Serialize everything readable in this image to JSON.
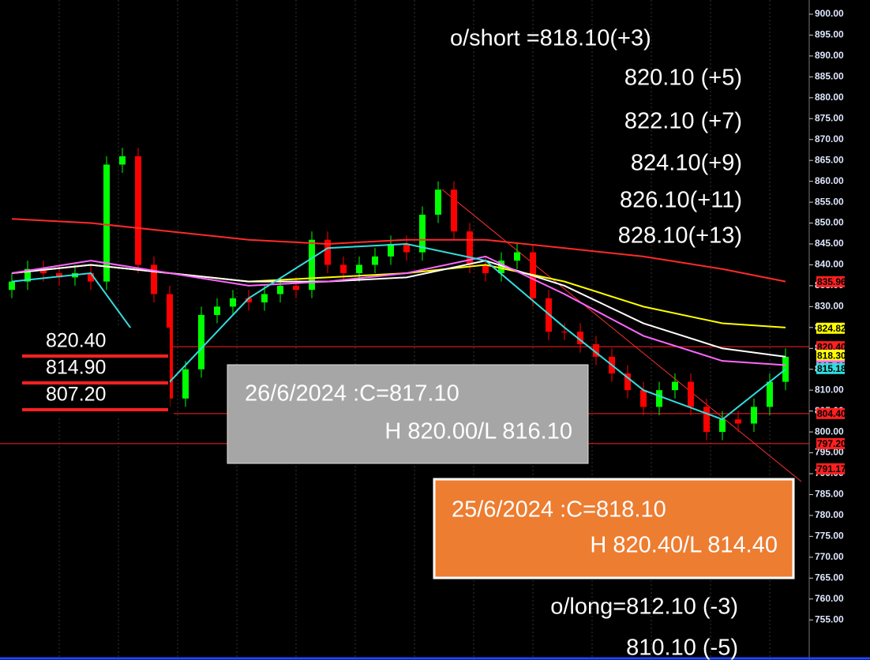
{
  "chart_data": {
    "type": "candlestick",
    "ylim": [
      745.4,
      903.4
    ],
    "yticks": [
      {
        "value": 900,
        "label": "900.00"
      },
      {
        "value": 895,
        "label": "895.00"
      },
      {
        "value": 890,
        "label": "890.00"
      },
      {
        "value": 885,
        "label": "885.00"
      },
      {
        "value": 880,
        "label": "880.00"
      },
      {
        "value": 875,
        "label": "875.00"
      },
      {
        "value": 870,
        "label": "870.00"
      },
      {
        "value": 865,
        "label": "865.00"
      },
      {
        "value": 860,
        "label": "860.00"
      },
      {
        "value": 855,
        "label": "855.00"
      },
      {
        "value": 850,
        "label": "850.00"
      },
      {
        "value": 845,
        "label": "845.00"
      },
      {
        "value": 840,
        "label": "840.00"
      },
      {
        "value": 835,
        "label": "835.00"
      },
      {
        "value": 830,
        "label": "830.00"
      },
      {
        "value": 825,
        "label": "825.00"
      },
      {
        "value": 820,
        "label": "820.00"
      },
      {
        "value": 815,
        "label": "815.00"
      },
      {
        "value": 810,
        "label": "810.00"
      },
      {
        "value": 805,
        "label": "805.00"
      },
      {
        "value": 800,
        "label": "800.00"
      },
      {
        "value": 795,
        "label": "795.00"
      },
      {
        "value": 790,
        "label": "790.00"
      },
      {
        "value": 785,
        "label": "785.00"
      },
      {
        "value": 780,
        "label": "780.00"
      },
      {
        "value": 775,
        "label": "775.00"
      },
      {
        "value": 770,
        "label": "770.00"
      },
      {
        "value": 765,
        "label": "765.00"
      },
      {
        "value": 760,
        "label": "760.00"
      },
      {
        "value": 755,
        "label": "755.00"
      }
    ],
    "up_color": "#00ff00",
    "down_color": "#ff0000",
    "candles": {
      "open": [
        834,
        836,
        839,
        838,
        837,
        838,
        836,
        864,
        866,
        840,
        833,
        808,
        815,
        828,
        830,
        832,
        831,
        833,
        835,
        834,
        846,
        840,
        838,
        840,
        842,
        845,
        843,
        852,
        858,
        848,
        840,
        838,
        841,
        843,
        832,
        824,
        824,
        821,
        818,
        814,
        810,
        806,
        810,
        812,
        806,
        800,
        803,
        802,
        806,
        812
      ],
      "close": [
        836,
        839,
        838,
        837,
        838,
        836,
        864,
        866,
        840,
        833,
        808,
        815,
        828,
        830,
        832,
        831,
        833,
        835,
        834,
        846,
        840,
        838,
        840,
        842,
        845,
        843,
        852,
        858,
        848,
        840,
        838,
        841,
        843,
        832,
        824,
        824,
        821,
        818,
        814,
        810,
        806,
        810,
        812,
        806,
        800,
        803,
        802,
        806,
        812,
        818
      ],
      "high": [
        838,
        841,
        841,
        840,
        840,
        840,
        866,
        868,
        868,
        842,
        835,
        817,
        830,
        832,
        834,
        834,
        835,
        837,
        837,
        848,
        848,
        842,
        842,
        844,
        847,
        847,
        854,
        860,
        860,
        850,
        842,
        843,
        845,
        845,
        834,
        826,
        826,
        823,
        820,
        816,
        812,
        812,
        814,
        814,
        808,
        805,
        805,
        808,
        814,
        820
      ],
      "low": [
        832,
        834,
        836,
        835,
        835,
        834,
        834,
        862,
        838,
        831,
        806,
        806,
        813,
        826,
        828,
        829,
        829,
        831,
        832,
        832,
        838,
        836,
        836,
        838,
        840,
        841,
        841,
        850,
        846,
        838,
        836,
        836,
        839,
        830,
        822,
        822,
        819,
        816,
        812,
        808,
        804,
        804,
        808,
        804,
        798,
        798,
        800,
        800,
        804,
        810
      ]
    },
    "series": [
      {
        "name": "MA-red",
        "color": "#ff2a2a",
        "x": [
          0,
          5,
          10,
          15,
          20,
          25,
          30,
          35,
          40,
          45,
          49
        ],
        "values": [
          851,
          850,
          848,
          846,
          845,
          846,
          846,
          844,
          842,
          839,
          836
        ]
      },
      {
        "name": "MA-yellow",
        "color": "#ffff00",
        "x": [
          0,
          5,
          10,
          15,
          20,
          25,
          30,
          35,
          40,
          45,
          49
        ],
        "values": [
          838,
          840,
          838,
          836,
          837,
          838,
          840,
          836,
          830,
          826,
          825
        ]
      },
      {
        "name": "MA-white",
        "color": "#ffffff",
        "x": [
          0,
          5,
          10,
          15,
          20,
          25,
          30,
          35,
          40,
          45,
          49
        ],
        "values": [
          838,
          840,
          838,
          836,
          836,
          837,
          841,
          835,
          826,
          820,
          818
        ]
      },
      {
        "name": "MA-magenta",
        "color": "#ff66ff",
        "x": [
          0,
          5,
          10,
          15,
          20,
          25,
          30,
          35,
          40,
          45,
          49
        ],
        "values": [
          838,
          841,
          838,
          835,
          836,
          838,
          842,
          833,
          823,
          817,
          816
        ]
      },
      {
        "name": "MA-cyan",
        "color": "#33dddd",
        "x": [
          0,
          5,
          10,
          15,
          20,
          25,
          30,
          35,
          40,
          45,
          49
        ],
        "values": [
          836,
          838,
          812,
          832,
          844,
          845,
          841,
          825,
          810,
          803,
          815
        ]
      }
    ],
    "levels": [
      820.4,
      804.4,
      797.2
    ],
    "price_tags": [
      {
        "value": 835.96,
        "label": "835.96",
        "color": "#ff2020"
      },
      {
        "value": 824.82,
        "label": "824.82",
        "color": "#ffff00"
      },
      {
        "value": 820.4,
        "label": "820.40",
        "color": "#ff2020"
      },
      {
        "value": 818.38,
        "label": "818.38",
        "color": "#ffffff"
      },
      {
        "value": 818.3,
        "label": "818.30",
        "color": "#ffff00"
      },
      {
        "value": 815.8,
        "label": "815.80",
        "color": "#ff66ff"
      },
      {
        "value": 815.18,
        "label": "815.18",
        "color": "#33dddd"
      },
      {
        "value": 804.4,
        "label": "804.40",
        "color": "#ff2020"
      },
      {
        "value": 797.2,
        "label": "797.20",
        "color": "#ff2020"
      },
      {
        "value": 791.17,
        "label": "791.17",
        "color": "#ff2020"
      }
    ],
    "short_targets": [
      "o/short =818.10(+3)",
      "820.10 (+5)",
      "822.10 (+7)",
      "824.10(+9)",
      "826.10(+11)",
      "828.10(+13)"
    ],
    "long_targets": [
      "o/long=812.10 (-3)",
      "810.10 (-5)"
    ],
    "box_levels": [
      {
        "value": 820.4,
        "label": "820.40"
      },
      {
        "value": 814.9,
        "label": "814.90"
      },
      {
        "value": 807.2,
        "label": "807.20"
      }
    ],
    "gray_box": [
      "26/6/2024 :C=817.10",
      "H 820.00/L 816.10"
    ],
    "orange_box": [
      "25/6/2024 :C=818.10",
      "H 820.40/L 814.40"
    ]
  }
}
